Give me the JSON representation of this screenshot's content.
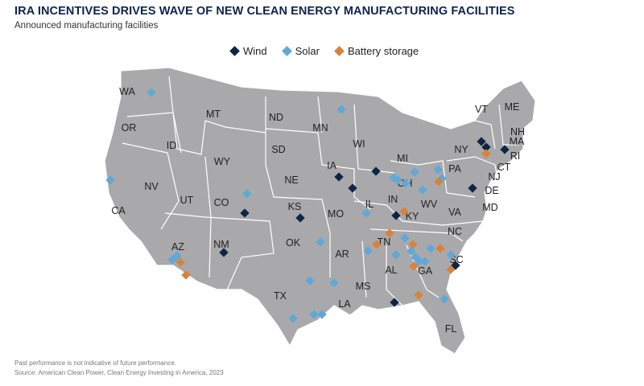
{
  "title": "IRA INCENTIVES DRIVES WAVE OF NEW CLEAN ENERGY MANUFACTURING FACILITIES",
  "subtitle": "Announced manufacturing facilities",
  "legend": [
    {
      "label": "Wind",
      "color": "#0d2547"
    },
    {
      "label": "Solar",
      "color": "#5fa8d8"
    },
    {
      "label": "Battery storage",
      "color": "#d9823b"
    }
  ],
  "states": [
    {
      "label": "WA"
    },
    {
      "label": "OR"
    },
    {
      "label": "CA"
    },
    {
      "label": "ID"
    },
    {
      "label": "NV"
    },
    {
      "label": "MT"
    },
    {
      "label": "WY"
    },
    {
      "label": "UT"
    },
    {
      "label": "AZ"
    },
    {
      "label": "CO"
    },
    {
      "label": "NM"
    },
    {
      "label": "ND"
    },
    {
      "label": "SD"
    },
    {
      "label": "NE"
    },
    {
      "label": "KS"
    },
    {
      "label": "OK"
    },
    {
      "label": "TX"
    },
    {
      "label": "MN"
    },
    {
      "label": "IA"
    },
    {
      "label": "MO"
    },
    {
      "label": "AR"
    },
    {
      "label": "LA"
    },
    {
      "label": "WI"
    },
    {
      "label": "IL"
    },
    {
      "label": "MI"
    },
    {
      "label": "IN"
    },
    {
      "label": "OH"
    },
    {
      "label": "KY"
    },
    {
      "label": "TN"
    },
    {
      "label": "MS"
    },
    {
      "label": "AL"
    },
    {
      "label": "GA"
    },
    {
      "label": "FL"
    },
    {
      "label": "SC"
    },
    {
      "label": "NC"
    },
    {
      "label": "VA"
    },
    {
      "label": "WV"
    },
    {
      "label": "PA"
    },
    {
      "label": "NY"
    },
    {
      "label": "VT"
    },
    {
      "label": "ME"
    },
    {
      "label": "NH"
    },
    {
      "label": "MA"
    },
    {
      "label": "RI"
    },
    {
      "label": "CT"
    },
    {
      "label": "NJ"
    },
    {
      "label": "DE"
    },
    {
      "label": "MD"
    }
  ],
  "facilities": [
    {
      "type": "Solar",
      "state": "WA"
    },
    {
      "type": "Solar",
      "state": "CA"
    },
    {
      "type": "Solar",
      "state": "MN"
    },
    {
      "type": "Solar",
      "state": "CO"
    },
    {
      "type": "Wind",
      "state": "CO"
    },
    {
      "type": "Wind",
      "state": "KS"
    },
    {
      "type": "Wind",
      "state": "NM"
    },
    {
      "type": "Solar",
      "state": "AZ"
    },
    {
      "type": "Solar",
      "state": "AZ"
    },
    {
      "type": "Battery storage",
      "state": "AZ"
    },
    {
      "type": "Battery storage",
      "state": "AZ"
    },
    {
      "type": "Solar",
      "state": "OK"
    },
    {
      "type": "Solar",
      "state": "TX"
    },
    {
      "type": "Solar",
      "state": "TX"
    },
    {
      "type": "Solar",
      "state": "TX"
    },
    {
      "type": "Solar",
      "state": "TX"
    },
    {
      "type": "Solar",
      "state": "TX"
    },
    {
      "type": "Wind",
      "state": "IA"
    },
    {
      "type": "Wind",
      "state": "IL"
    },
    {
      "type": "Wind",
      "state": "MO"
    },
    {
      "type": "Solar",
      "state": "MO"
    },
    {
      "type": "Solar",
      "state": "AR"
    },
    {
      "type": "Solar",
      "state": "MI"
    },
    {
      "type": "Solar",
      "state": "MI"
    },
    {
      "type": "Solar",
      "state": "OH"
    },
    {
      "type": "Solar",
      "state": "OH"
    },
    {
      "type": "Solar",
      "state": "OH"
    },
    {
      "type": "Solar",
      "state": "PA"
    },
    {
      "type": "Solar",
      "state": "PA"
    },
    {
      "type": "Battery storage",
      "state": "PA"
    },
    {
      "type": "Wind",
      "state": "IN"
    },
    {
      "type": "Battery storage",
      "state": "KY"
    },
    {
      "type": "Battery storage",
      "state": "TN"
    },
    {
      "type": "Battery storage",
      "state": "TN"
    },
    {
      "type": "Solar",
      "state": "TN"
    },
    {
      "type": "Battery storage",
      "state": "TN"
    },
    {
      "type": "Solar",
      "state": "AL"
    },
    {
      "type": "Solar",
      "state": "AL"
    },
    {
      "type": "Solar",
      "state": "AL"
    },
    {
      "type": "Battery storage",
      "state": "AL"
    },
    {
      "type": "Wind",
      "state": "AL"
    },
    {
      "type": "Solar",
      "state": "GA"
    },
    {
      "type": "Solar",
      "state": "GA"
    },
    {
      "type": "Battery storage",
      "state": "GA"
    },
    {
      "type": "Solar",
      "state": "GA"
    },
    {
      "type": "Battery storage",
      "state": "GA"
    },
    {
      "type": "Solar",
      "state": "SC"
    },
    {
      "type": "Battery storage",
      "state": "SC"
    },
    {
      "type": "Wind",
      "state": "SC"
    },
    {
      "type": "Solar",
      "state": "FL"
    },
    {
      "type": "Wind",
      "state": "NY"
    },
    {
      "type": "Wind",
      "state": "NY"
    },
    {
      "type": "Battery storage",
      "state": "NY"
    },
    {
      "type": "Wind",
      "state": "MA"
    },
    {
      "type": "Wind",
      "state": "VA"
    }
  ],
  "footnote1": "Past performance is not indicative of future performance.",
  "footnote2": "Source: American Clean Power, Clean Energy Investing in America, 2023"
}
